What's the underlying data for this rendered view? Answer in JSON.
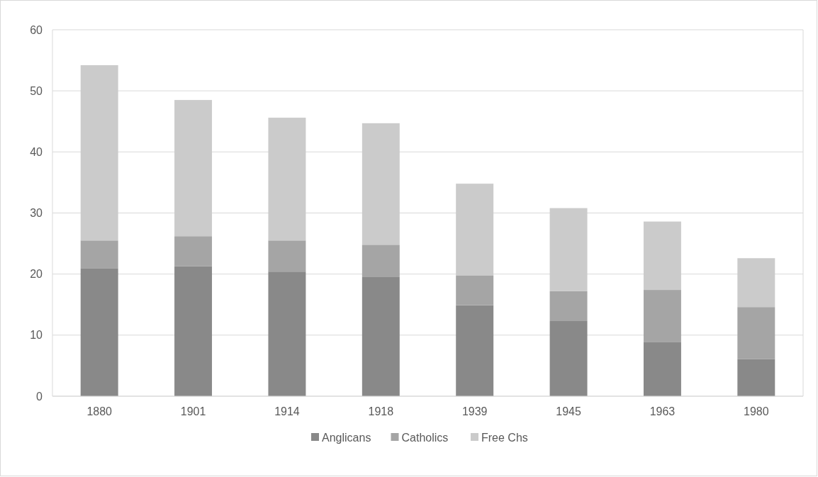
{
  "chart_data": {
    "type": "bar",
    "stacked": true,
    "categories": [
      "1880",
      "1901",
      "1914",
      "1918",
      "1939",
      "1945",
      "1963",
      "1980"
    ],
    "series": [
      {
        "name": "Anglicans",
        "color": "#898989",
        "values": [
          20.9,
          21.3,
          20.4,
          19.5,
          14.9,
          12.3,
          8.9,
          6.1
        ]
      },
      {
        "name": "Catholics",
        "color": "#a5a5a5",
        "values": [
          4.6,
          4.9,
          5.1,
          5.3,
          4.9,
          4.9,
          8.5,
          8.5
        ]
      },
      {
        "name": "Free Chs",
        "color": "#cbcbcb",
        "values": [
          28.7,
          22.3,
          20.1,
          19.9,
          15.0,
          13.6,
          11.2,
          8.0
        ]
      }
    ],
    "ylim": [
      0,
      60
    ],
    "yticks": [
      0,
      10,
      20,
      30,
      40,
      50,
      60
    ],
    "grid": "y",
    "legend": "bottom"
  }
}
